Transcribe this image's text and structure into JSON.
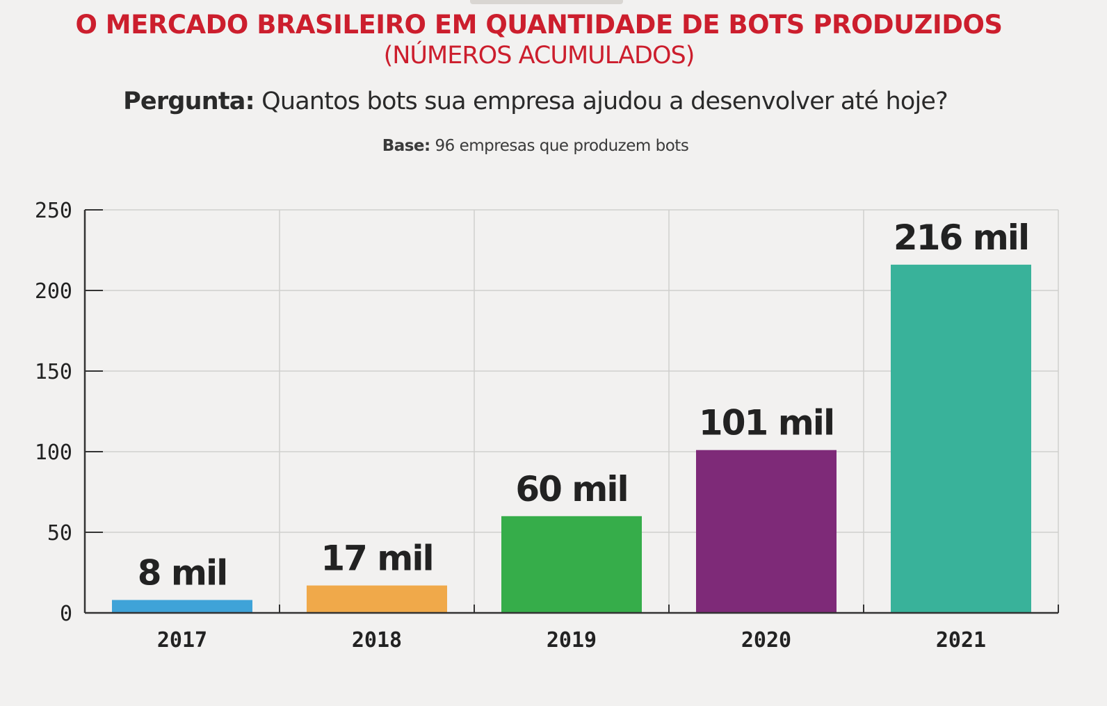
{
  "header": {
    "title": "O MERCADO BRASILEIRO EM QUANTIDADE DE BOTS PRODUZIDOS",
    "subtitle": "(NÚMEROS ACUMULADOS)",
    "question_label": "Pergunta:",
    "question_text": " Quantos bots sua empresa ajudou a desenvolver até hoje?",
    "base_label": "Base:",
    "base_text": " 96 empresas que produzem bots"
  },
  "chart_data": {
    "type": "bar",
    "categories": [
      "2017",
      "2018",
      "2019",
      "2020",
      "2021"
    ],
    "values": [
      8,
      17,
      60,
      101,
      216
    ],
    "data_labels": [
      "8 mil",
      "17 mil",
      "60 mil",
      "101 mil",
      "216 mil"
    ],
    "colors": [
      "#3fa3d8",
      "#f0a94a",
      "#36ad4a",
      "#7e2a78",
      "#39b29a"
    ],
    "ylim": [
      0,
      250
    ],
    "yticks": [
      0,
      50,
      100,
      150,
      200,
      250
    ],
    "grid": true,
    "xlabel": "",
    "ylabel": ""
  }
}
